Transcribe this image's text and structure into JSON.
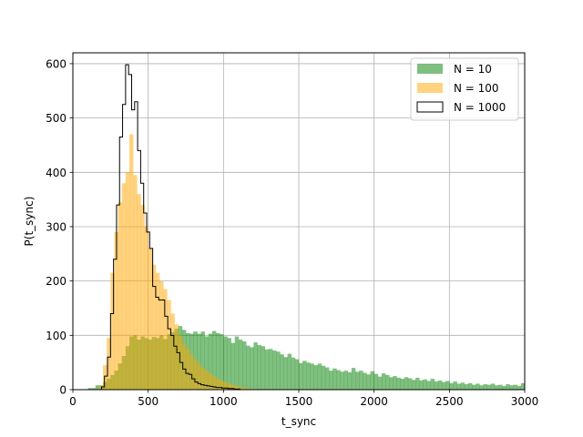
{
  "chart_data": {
    "type": "histogram",
    "xlabel": "t_sync",
    "ylabel": "P(t_sync)",
    "xlim": [
      0,
      3000
    ],
    "ylim": [
      0,
      620
    ],
    "xticks": [
      0,
      500,
      1000,
      1500,
      2000,
      2500,
      3000
    ],
    "yticks": [
      0,
      100,
      200,
      300,
      400,
      500,
      600
    ],
    "grid": true,
    "legend_position": "top-right",
    "series": [
      {
        "name": "N = 10",
        "style": "filled",
        "color": "#008000",
        "opacity": 0.5,
        "bins": [
          [
            0,
            100,
            0
          ],
          [
            100,
            150,
            3
          ],
          [
            150,
            200,
            8
          ],
          [
            200,
            225,
            14
          ],
          [
            225,
            250,
            20
          ],
          [
            250,
            275,
            27
          ],
          [
            275,
            300,
            35
          ],
          [
            300,
            325,
            48
          ],
          [
            325,
            350,
            62
          ],
          [
            350,
            375,
            80
          ],
          [
            375,
            400,
            98
          ],
          [
            400,
            425,
            100
          ],
          [
            425,
            450,
            92
          ],
          [
            450,
            475,
            98
          ],
          [
            475,
            500,
            95
          ],
          [
            500,
            525,
            92
          ],
          [
            525,
            550,
            97
          ],
          [
            550,
            575,
            95
          ],
          [
            575,
            600,
            100
          ],
          [
            600,
            625,
            93
          ],
          [
            625,
            650,
            102
          ],
          [
            650,
            675,
            106
          ],
          [
            675,
            700,
            112
          ],
          [
            700,
            725,
            117
          ],
          [
            725,
            750,
            110
          ],
          [
            750,
            775,
            104
          ],
          [
            775,
            800,
            103
          ],
          [
            800,
            825,
            107
          ],
          [
            825,
            850,
            103
          ],
          [
            850,
            875,
            107
          ],
          [
            875,
            900,
            98
          ],
          [
            900,
            925,
            103
          ],
          [
            925,
            950,
            108
          ],
          [
            950,
            975,
            104
          ],
          [
            975,
            1000,
            102
          ],
          [
            1000,
            1025,
            98
          ],
          [
            1025,
            1050,
            95
          ],
          [
            1050,
            1075,
            86
          ],
          [
            1075,
            1100,
            98
          ],
          [
            1100,
            1125,
            92
          ],
          [
            1125,
            1150,
            89
          ],
          [
            1150,
            1175,
            81
          ],
          [
            1175,
            1200,
            78
          ],
          [
            1200,
            1225,
            87
          ],
          [
            1225,
            1250,
            82
          ],
          [
            1250,
            1275,
            80
          ],
          [
            1275,
            1300,
            74
          ],
          [
            1300,
            1325,
            75
          ],
          [
            1325,
            1350,
            72
          ],
          [
            1350,
            1375,
            70
          ],
          [
            1375,
            1400,
            65
          ],
          [
            1400,
            1425,
            60
          ],
          [
            1425,
            1450,
            66
          ],
          [
            1450,
            1475,
            59
          ],
          [
            1475,
            1500,
            56
          ],
          [
            1500,
            1525,
            49
          ],
          [
            1525,
            1550,
            53
          ],
          [
            1550,
            1575,
            50
          ],
          [
            1575,
            1600,
            48
          ],
          [
            1600,
            1625,
            45
          ],
          [
            1625,
            1650,
            48
          ],
          [
            1650,
            1675,
            44
          ],
          [
            1675,
            1700,
            41
          ],
          [
            1700,
            1725,
            35
          ],
          [
            1725,
            1750,
            39
          ],
          [
            1750,
            1775,
            36
          ],
          [
            1775,
            1800,
            33
          ],
          [
            1800,
            1825,
            35
          ],
          [
            1825,
            1850,
            32
          ],
          [
            1850,
            1875,
            40
          ],
          [
            1875,
            1900,
            33
          ],
          [
            1900,
            1925,
            35
          ],
          [
            1925,
            1950,
            31
          ],
          [
            1950,
            1975,
            28
          ],
          [
            1975,
            2000,
            34
          ],
          [
            2000,
            2025,
            29
          ],
          [
            2025,
            2050,
            24
          ],
          [
            2050,
            2075,
            30
          ],
          [
            2075,
            2100,
            27
          ],
          [
            2100,
            2125,
            23
          ],
          [
            2125,
            2150,
            25
          ],
          [
            2150,
            2175,
            22
          ],
          [
            2175,
            2200,
            20
          ],
          [
            2200,
            2225,
            23
          ],
          [
            2225,
            2250,
            21
          ],
          [
            2250,
            2275,
            18
          ],
          [
            2275,
            2300,
            22
          ],
          [
            2300,
            2325,
            17
          ],
          [
            2325,
            2350,
            19
          ],
          [
            2350,
            2375,
            16
          ],
          [
            2375,
            2400,
            20
          ],
          [
            2400,
            2425,
            15
          ],
          [
            2425,
            2450,
            17
          ],
          [
            2450,
            2475,
            14
          ],
          [
            2475,
            2500,
            16
          ],
          [
            2500,
            2525,
            12
          ],
          [
            2525,
            2550,
            15
          ],
          [
            2550,
            2575,
            11
          ],
          [
            2575,
            2600,
            13
          ],
          [
            2600,
            2625,
            10
          ],
          [
            2625,
            2650,
            12
          ],
          [
            2650,
            2675,
            9
          ],
          [
            2675,
            2700,
            11
          ],
          [
            2700,
            2725,
            8
          ],
          [
            2725,
            2750,
            10
          ],
          [
            2750,
            2775,
            9
          ],
          [
            2775,
            2800,
            11
          ],
          [
            2800,
            2825,
            8
          ],
          [
            2825,
            2850,
            9
          ],
          [
            2850,
            2875,
            7
          ],
          [
            2875,
            2900,
            10
          ],
          [
            2900,
            2925,
            8
          ],
          [
            2925,
            2950,
            9
          ],
          [
            2950,
            2975,
            7
          ],
          [
            2975,
            3000,
            12
          ]
        ]
      },
      {
        "name": "N = 100",
        "style": "filled",
        "color": "#FFA500",
        "opacity": 0.5,
        "bins": [
          [
            100,
            175,
            0
          ],
          [
            175,
            200,
            8
          ],
          [
            200,
            225,
            45
          ],
          [
            225,
            250,
            95
          ],
          [
            250,
            275,
            215
          ],
          [
            275,
            300,
            290
          ],
          [
            300,
            325,
            345
          ],
          [
            325,
            350,
            380
          ],
          [
            350,
            375,
            400
          ],
          [
            375,
            400,
            470
          ],
          [
            400,
            425,
            395
          ],
          [
            425,
            450,
            360
          ],
          [
            450,
            475,
            340
          ],
          [
            475,
            500,
            300
          ],
          [
            500,
            525,
            260
          ],
          [
            525,
            550,
            230
          ],
          [
            550,
            575,
            215
          ],
          [
            575,
            600,
            200
          ],
          [
            600,
            625,
            185
          ],
          [
            625,
            650,
            165
          ],
          [
            650,
            675,
            140
          ],
          [
            675,
            700,
            120
          ],
          [
            700,
            725,
            100
          ],
          [
            725,
            750,
            85
          ],
          [
            750,
            775,
            75
          ],
          [
            775,
            800,
            65
          ],
          [
            800,
            825,
            55
          ],
          [
            825,
            850,
            48
          ],
          [
            850,
            875,
            40
          ],
          [
            875,
            900,
            35
          ],
          [
            900,
            925,
            30
          ],
          [
            925,
            950,
            25
          ],
          [
            950,
            975,
            20
          ],
          [
            975,
            1000,
            17
          ],
          [
            1000,
            1025,
            14
          ],
          [
            1025,
            1050,
            11
          ],
          [
            1050,
            1075,
            9
          ],
          [
            1075,
            1100,
            7
          ],
          [
            1100,
            1125,
            5
          ],
          [
            1125,
            1150,
            4
          ],
          [
            1150,
            1200,
            2
          ],
          [
            1200,
            1300,
            1
          ]
        ]
      },
      {
        "name": "N = 1000",
        "style": "step",
        "color": "#000000",
        "bins": [
          [
            190,
            210,
            5
          ],
          [
            210,
            230,
            25
          ],
          [
            230,
            250,
            60
          ],
          [
            250,
            270,
            140
          ],
          [
            270,
            290,
            240
          ],
          [
            290,
            310,
            340
          ],
          [
            310,
            330,
            465
          ],
          [
            330,
            350,
            525
          ],
          [
            350,
            370,
            598
          ],
          [
            370,
            390,
            580
          ],
          [
            390,
            410,
            515
          ],
          [
            410,
            430,
            530
          ],
          [
            430,
            450,
            440
          ],
          [
            450,
            470,
            380
          ],
          [
            470,
            490,
            325
          ],
          [
            490,
            510,
            290
          ],
          [
            510,
            530,
            260
          ],
          [
            530,
            550,
            190
          ],
          [
            550,
            570,
            170
          ],
          [
            570,
            590,
            165
          ],
          [
            590,
            610,
            165
          ],
          [
            610,
            630,
            135
          ],
          [
            630,
            650,
            112
          ],
          [
            650,
            670,
            100
          ],
          [
            670,
            690,
            80
          ],
          [
            690,
            710,
            68
          ],
          [
            710,
            730,
            50
          ],
          [
            730,
            750,
            38
          ],
          [
            750,
            770,
            30
          ],
          [
            770,
            790,
            28
          ],
          [
            790,
            810,
            20
          ],
          [
            810,
            830,
            14
          ],
          [
            830,
            850,
            11
          ],
          [
            850,
            870,
            9
          ],
          [
            870,
            890,
            8
          ],
          [
            890,
            910,
            7
          ],
          [
            910,
            930,
            6
          ],
          [
            930,
            950,
            5
          ],
          [
            950,
            970,
            4
          ],
          [
            970,
            990,
            4
          ],
          [
            990,
            1010,
            3
          ],
          [
            1010,
            1030,
            3
          ],
          [
            1030,
            1050,
            2
          ],
          [
            1050,
            1070,
            2
          ],
          [
            1070,
            1090,
            1
          ],
          [
            1090,
            1110,
            1
          ]
        ]
      }
    ]
  }
}
